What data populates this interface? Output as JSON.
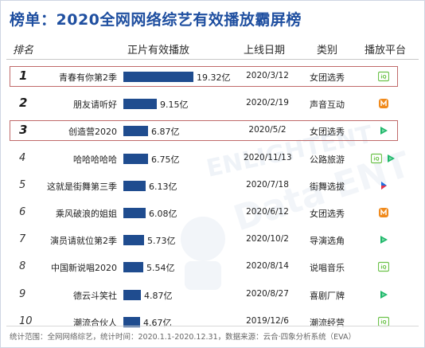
{
  "title": "榜单：2020全网网络综艺有效播放霸屏榜",
  "headers": {
    "rank": "排名",
    "value": "正片有效播放",
    "date": "上线日期",
    "category": "类别",
    "platform": "播放平台"
  },
  "chart_data": {
    "type": "bar",
    "title": "榜单：2020全网网络综艺有效播放霸屏榜",
    "categories": [
      "青春有你第2季",
      "朋友请听好",
      "创造营2020",
      "哈哈哈哈哈",
      "这就是街舞第三季",
      "乘风破浪的姐姐",
      "演员请就位第2季",
      "中国新说唱2020",
      "德云斗笑社",
      "潮流合伙人"
    ],
    "values": [
      19.32,
      9.15,
      6.87,
      6.75,
      6.13,
      6.08,
      5.73,
      5.54,
      4.87,
      4.67
    ],
    "value_labels": [
      "19.32亿",
      "9.15亿",
      "6.87亿",
      "6.75亿",
      "6.13亿",
      "6.08亿",
      "5.73亿",
      "5.54亿",
      "4.87亿",
      "4.67亿"
    ],
    "unit": "亿",
    "ranks": [
      "1",
      "2",
      "3",
      "4",
      "5",
      "6",
      "7",
      "8",
      "9",
      "10"
    ],
    "dates": [
      "2020/3/12",
      "2020/2/19",
      "2020/5/2",
      "2020/11/13",
      "2020/7/18",
      "2020/6/12",
      "2020/10/2",
      "2020/8/14",
      "2020/8/27",
      "2019/12/6"
    ],
    "genres": [
      "女团选秀",
      "声音互动",
      "女团选秀",
      "公路旅游",
      "街舞选拔",
      "女团选秀",
      "导演选角",
      "说唱音乐",
      "喜剧厂牌",
      "潮流经营"
    ],
    "platforms": [
      [
        "iqiyi-icon"
      ],
      [
        "mgtv-icon"
      ],
      [
        "tencent-icon"
      ],
      [
        "iqiyi-icon",
        "tencent-icon"
      ],
      [
        "youku-icon"
      ],
      [
        "mgtv-icon"
      ],
      [
        "tencent-icon"
      ],
      [
        "iqiyi-icon"
      ],
      [
        "tencent-icon"
      ],
      [
        "iqiyi-icon"
      ]
    ],
    "highlighted_ranks": [
      1,
      3
    ]
  },
  "colors": {
    "title": "#1f4fa0",
    "bar": "#1f4c8f",
    "highlight_border": "#c06a6a",
    "iqiyi": "#6cc24a",
    "mgtv": "#f08a1c",
    "tencent": "#1fb86a",
    "youku": "#1e6fe0"
  },
  "watermark": "艺恩数据 ENTGROUP ENLIGHTENT",
  "footer": "统计范围：全网网络综艺，统计时间：2020.1.1-2020.12.31，数据来源：云合·四象分析系统（EVA）"
}
